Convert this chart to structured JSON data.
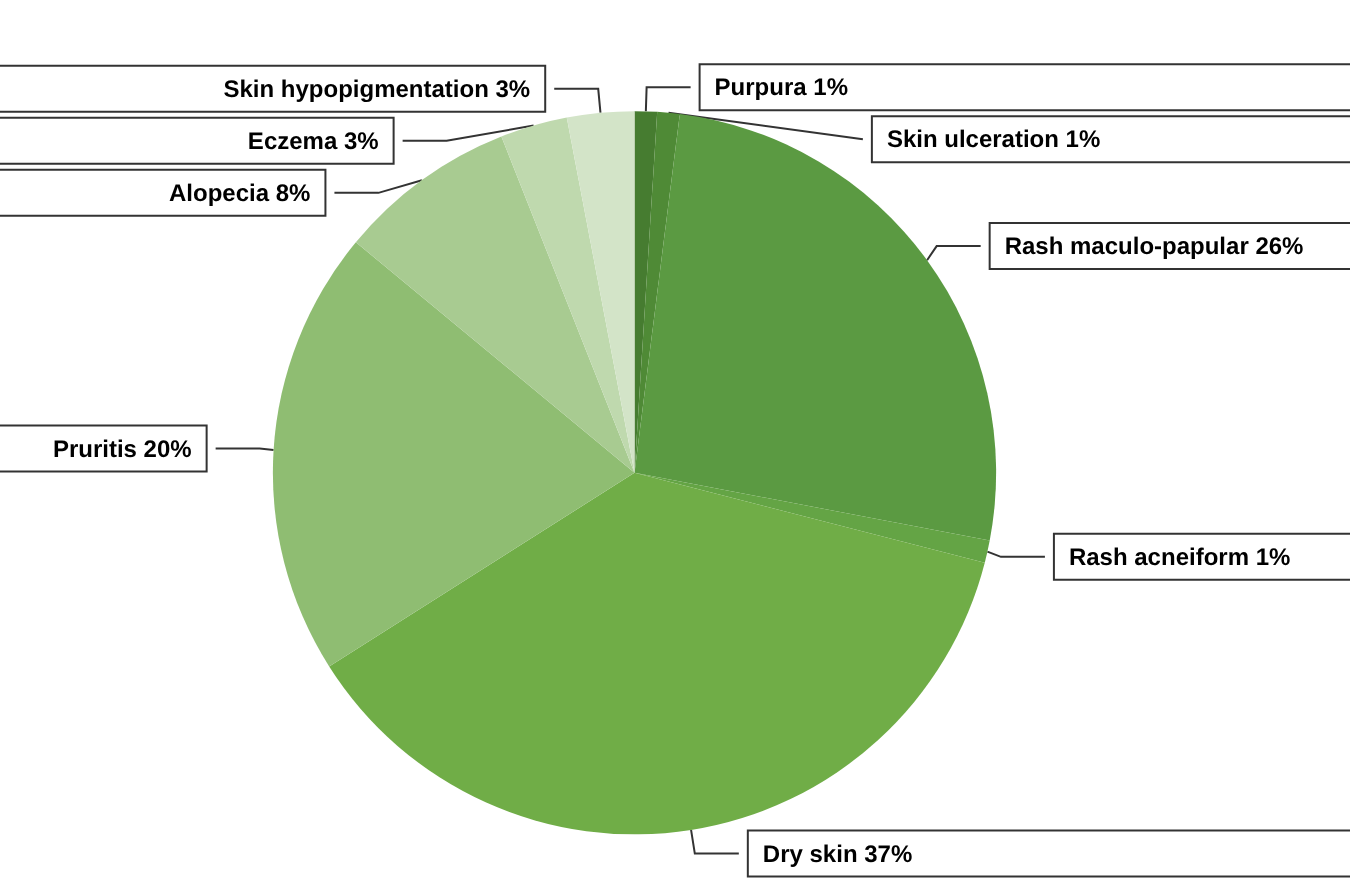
{
  "chart_data": {
    "type": "pie",
    "categories": [
      "Purpura",
      "Skin ulceration",
      "Rash maculo-papular",
      "Rash acneiform",
      "Dry skin",
      "Pruritis",
      "Alopecia",
      "Eczema",
      "Skin hypopigmentation"
    ],
    "values": [
      1,
      1,
      26,
      1,
      37,
      20,
      8,
      3,
      3
    ],
    "value_labels": [
      "1%",
      "1%",
      "26%",
      "1%",
      "37%",
      "20%",
      "8%",
      "3%",
      "3%"
    ],
    "colors": [
      "#467c30",
      "#4f8a36",
      "#5b9a42",
      "#64a445",
      "#70ad47",
      "#8fbd72",
      "#a8cb91",
      "#bfd9ae",
      "#d3e4c8"
    ],
    "legend": false
  }
}
